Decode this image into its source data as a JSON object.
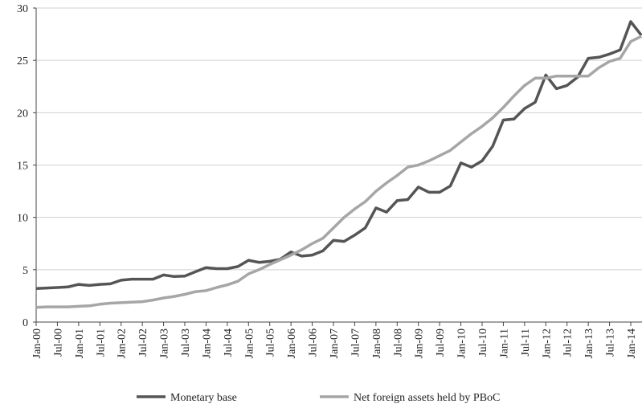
{
  "chart_data": {
    "type": "line",
    "categories": [
      "Jan-00",
      null,
      "Jul-00",
      null,
      "Jan-01",
      null,
      "Jul-01",
      null,
      "Jan-02",
      null,
      "Jul-02",
      null,
      "Jan-03",
      null,
      "Jul-03",
      null,
      "Jan-04",
      null,
      "Jul-04",
      null,
      "Jan-05",
      null,
      "Jul-05",
      null,
      "Jan-06",
      null,
      "Jul-06",
      null,
      "Jan-07",
      null,
      "Jul-07",
      null,
      "Jan-08",
      null,
      "Jul-08",
      null,
      "Jan-09",
      null,
      "Jul-09",
      null,
      "Jan-10",
      null,
      "Jul-10",
      null,
      "Jan-11",
      null,
      "Jul-11",
      null,
      "Jan-12",
      null,
      "Jul-12",
      null,
      "Jan-13",
      null,
      "Jul-13",
      null,
      "Jan-14",
      null
    ],
    "series": [
      {
        "name": "Monetary base",
        "color": "#555555",
        "values": [
          3.2,
          3.25,
          3.3,
          3.35,
          3.6,
          3.5,
          3.6,
          3.65,
          4.0,
          4.1,
          4.1,
          4.1,
          4.5,
          4.35,
          4.4,
          4.8,
          5.2,
          5.1,
          5.1,
          5.3,
          5.9,
          5.7,
          5.8,
          6.0,
          6.7,
          6.3,
          6.4,
          6.8,
          7.8,
          7.7,
          8.3,
          9.0,
          10.9,
          10.5,
          11.6,
          11.7,
          12.9,
          12.4,
          12.4,
          13.0,
          15.2,
          14.8,
          15.4,
          16.8,
          19.3,
          19.4,
          20.4,
          21.0,
          23.6,
          22.3,
          22.6,
          23.4,
          25.2,
          25.3,
          25.6,
          26.0,
          28.7,
          27.4
        ]
      },
      {
        "name": "Net foreign assets held by PBoC",
        "color": "#a6a6a6",
        "values": [
          1.4,
          1.45,
          1.45,
          1.45,
          1.5,
          1.55,
          1.7,
          1.8,
          1.85,
          1.9,
          1.95,
          2.1,
          2.3,
          2.45,
          2.65,
          2.9,
          3.0,
          3.3,
          3.55,
          3.9,
          4.6,
          5.0,
          5.5,
          5.95,
          6.4,
          6.9,
          7.5,
          8.0,
          9.0,
          10.0,
          10.8,
          11.5,
          12.5,
          13.3,
          14.0,
          14.8,
          15.0,
          15.4,
          15.9,
          16.4,
          17.2,
          18.0,
          18.7,
          19.5,
          20.5,
          21.6,
          22.6,
          23.3,
          23.3,
          23.5,
          23.5,
          23.5,
          23.5,
          24.3,
          24.9,
          25.2,
          26.8,
          27.3
        ]
      }
    ],
    "ylim": [
      0,
      30
    ],
    "yticks": [
      0,
      5,
      10,
      15,
      20,
      25,
      30
    ],
    "grid": true,
    "legend": "bottom"
  }
}
